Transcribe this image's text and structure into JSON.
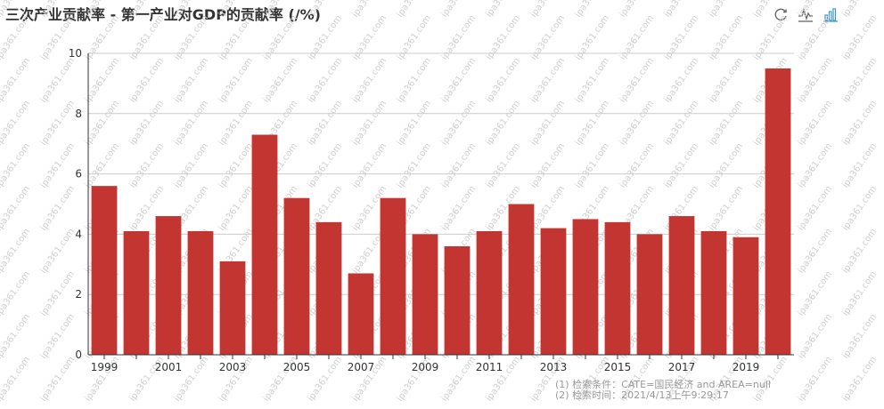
{
  "title": "三次产业贡献率 - 第一产业对GDP的贡献率 (/%)",
  "toolbox": {
    "restore_icon": "restore-icon",
    "line_icon": "line-chart-icon",
    "bar_icon": "bar-chart-icon"
  },
  "colors": {
    "bar": "#c23531",
    "axis": "#333333",
    "grid": "#cccccc",
    "watermark": "#d0d0d0"
  },
  "watermark": "ipa361.com",
  "footnotes": [
    "(1) 检索条件：CATE=国民经济 and AREA=null",
    "(2) 检索时间：2021/4/13上午9:29:17"
  ],
  "chart_data": {
    "type": "bar",
    "title": "三次产业贡献率 - 第一产业对GDP的贡献率 (/%)",
    "categories": [
      "1999",
      "2000",
      "2001",
      "2002",
      "2003",
      "2004",
      "2005",
      "2006",
      "2007",
      "2008",
      "2009",
      "2010",
      "2011",
      "2012",
      "2013",
      "2014",
      "2015",
      "2016",
      "2017",
      "2018",
      "2019",
      "2020"
    ],
    "x_tick_labels": [
      "1999",
      "2001",
      "2003",
      "2005",
      "2007",
      "2009",
      "2011",
      "2013",
      "2015",
      "2017",
      "2019"
    ],
    "values": [
      5.6,
      4.1,
      4.6,
      4.1,
      3.1,
      7.3,
      5.2,
      4.4,
      2.7,
      5.2,
      4.0,
      3.6,
      4.1,
      5.0,
      4.2,
      4.5,
      4.4,
      4.0,
      4.6,
      4.1,
      3.9,
      9.5
    ],
    "ylim": [
      0,
      10
    ],
    "yticks": [
      0,
      2,
      4,
      6,
      8,
      10
    ],
    "grid": true,
    "xlabel": "",
    "ylabel": ""
  }
}
